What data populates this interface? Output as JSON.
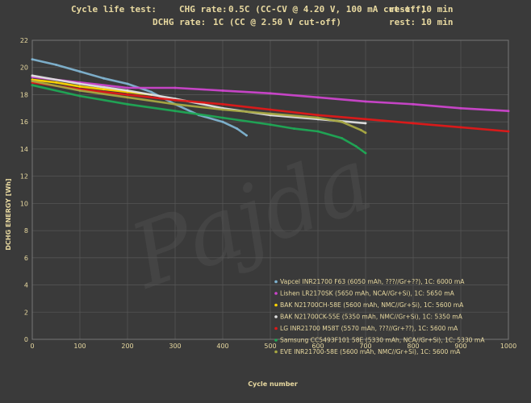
{
  "header": {
    "line1": {
      "label": "Cycle life test:",
      "rate_label": "CHG rate:",
      "rate_value": "0.5C (CC-CV @ 4.20 V, 100 mA cut-off)",
      "rest": "rest: 10 min"
    },
    "line2": {
      "rate_label": "DCHG rate:",
      "rate_value": "1C (CC @ 2.50 V cut-off)",
      "rest": "rest: 10 min"
    }
  },
  "watermark": "Pajda",
  "chart_data": {
    "type": "line",
    "xlabel": "Cycle number",
    "ylabel": "DCHG ENERGY [Wh]",
    "xlim": [
      0,
      1000
    ],
    "ylim": [
      0,
      22
    ],
    "xticks": [
      0,
      100,
      200,
      300,
      400,
      500,
      600,
      700,
      800,
      900,
      1000
    ],
    "yticks": [
      0,
      2,
      4,
      6,
      8,
      10,
      12,
      14,
      16,
      18,
      20,
      22
    ],
    "grid": true,
    "legend_position": "bottom-right",
    "series": [
      {
        "name": "Vapcel INR21700 F63 (6050 mAh, ???//Gr+??), 1C: 6000 mA",
        "color": "#7fb3d0",
        "points": [
          [
            0,
            20.6
          ],
          [
            50,
            20.2
          ],
          [
            100,
            19.7
          ],
          [
            150,
            19.2
          ],
          [
            200,
            18.8
          ],
          [
            250,
            18.2
          ],
          [
            300,
            17.3
          ],
          [
            350,
            16.5
          ],
          [
            400,
            16.0
          ],
          [
            430,
            15.5
          ],
          [
            450,
            15.0
          ]
        ]
      },
      {
        "name": "Lishen LR2170SK (5650 mAh, NCA//Gr+Si), 1C: 5650 mA",
        "color": "#cc44cc",
        "points": [
          [
            0,
            19.3
          ],
          [
            100,
            18.9
          ],
          [
            200,
            18.5
          ],
          [
            300,
            18.5
          ],
          [
            400,
            18.3
          ],
          [
            500,
            18.1
          ],
          [
            600,
            17.8
          ],
          [
            700,
            17.5
          ],
          [
            800,
            17.3
          ],
          [
            900,
            17.0
          ],
          [
            1000,
            16.8
          ]
        ]
      },
      {
        "name": "BAK N21700CH-58E (5600 mAh, NMC//Gr+Si), 1C: 5600 mA",
        "color": "#ffd400",
        "points": [
          [
            0,
            19.1
          ],
          [
            50,
            18.9
          ],
          [
            100,
            18.6
          ],
          [
            150,
            18.4
          ],
          [
            200,
            18.2
          ],
          [
            250,
            18.0
          ]
        ]
      },
      {
        "name": "BAK N21700CK-55E (5350 mAh, NMC//Gr+Si), 1C: 5350 mA",
        "color": "#e0e0e0",
        "points": [
          [
            0,
            19.4
          ],
          [
            100,
            18.8
          ],
          [
            200,
            18.3
          ],
          [
            300,
            17.7
          ],
          [
            400,
            17.0
          ],
          [
            500,
            16.5
          ],
          [
            600,
            16.2
          ],
          [
            700,
            15.9
          ]
        ]
      },
      {
        "name": "LG INR21700 M58T (5570 mAh, ???//Gr+??), 1C: 5600 mA",
        "color": "#e01818",
        "points": [
          [
            0,
            18.9
          ],
          [
            100,
            18.4
          ],
          [
            200,
            18.0
          ],
          [
            300,
            17.6
          ],
          [
            400,
            17.3
          ],
          [
            500,
            16.9
          ],
          [
            600,
            16.5
          ],
          [
            700,
            16.2
          ],
          [
            800,
            15.9
          ],
          [
            900,
            15.6
          ],
          [
            1000,
            15.3
          ]
        ]
      },
      {
        "name": "Samsung CC5493F101 58E (5330 mAh, NCA//Gr+Si), 1C: 5330 mA",
        "color": "#1fa855",
        "points": [
          [
            0,
            18.7
          ],
          [
            100,
            17.9
          ],
          [
            200,
            17.3
          ],
          [
            300,
            16.8
          ],
          [
            400,
            16.3
          ],
          [
            500,
            15.8
          ],
          [
            550,
            15.5
          ],
          [
            600,
            15.3
          ],
          [
            650,
            14.8
          ],
          [
            680,
            14.2
          ],
          [
            700,
            13.7
          ]
        ]
      },
      {
        "name": "EVE INR21700-58E (5600 mAh, NMC//Gr+Si), 1C: 5600 mA",
        "color": "#a8a842",
        "points": [
          [
            0,
            19.0
          ],
          [
            100,
            18.3
          ],
          [
            200,
            17.8
          ],
          [
            300,
            17.3
          ],
          [
            400,
            16.9
          ],
          [
            500,
            16.6
          ],
          [
            600,
            16.3
          ],
          [
            650,
            16.0
          ],
          [
            690,
            15.4
          ],
          [
            700,
            15.2
          ]
        ]
      }
    ]
  }
}
